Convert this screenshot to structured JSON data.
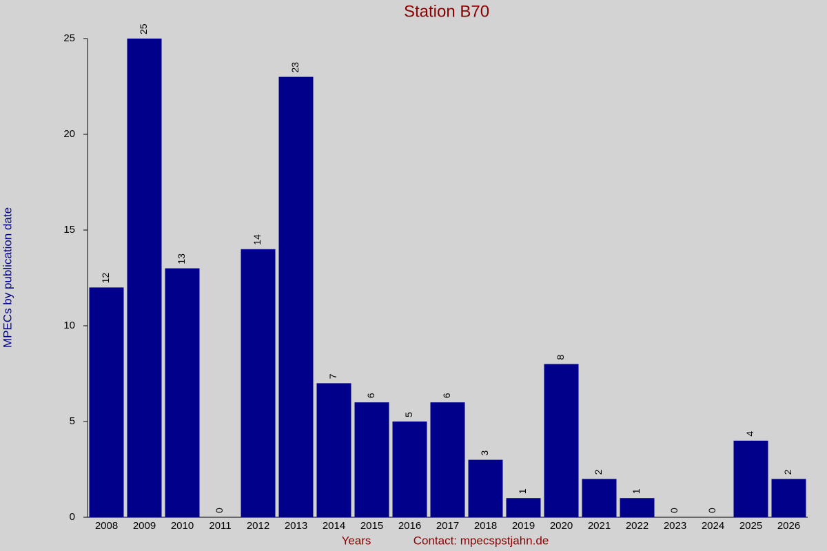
{
  "chart_data": {
    "type": "bar",
    "title": "Station B70",
    "y_label": "MPECs by publication date",
    "x_label": "Years",
    "contact": "Contact: mpecspstjahn.de",
    "categories": [
      "2008",
      "2009",
      "2010",
      "2011",
      "2012",
      "2013",
      "2014",
      "2015",
      "2016",
      "2017",
      "2018",
      "2019",
      "2020",
      "2021",
      "2022",
      "2023",
      "2024",
      "2025",
      "2026"
    ],
    "values": [
      12,
      25,
      13,
      0,
      14,
      23,
      7,
      6,
      5,
      6,
      3,
      1,
      8,
      2,
      1,
      0,
      0,
      4,
      2
    ],
    "color": "#00008b",
    "ylim": [
      0,
      25
    ],
    "yticks": [
      0,
      5,
      10,
      15,
      20,
      25
    ]
  }
}
